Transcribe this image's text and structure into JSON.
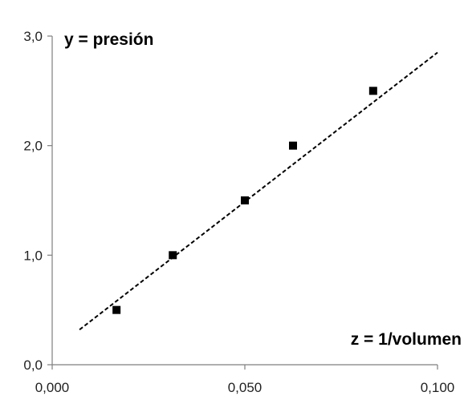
{
  "chart_data": {
    "type": "scatter",
    "ylabel": "y = presión",
    "xlabel": "z = 1/volumen",
    "xlim": [
      0,
      0.1
    ],
    "ylim": [
      0,
      3
    ],
    "x_ticks": [
      0,
      0.05,
      0.1
    ],
    "x_tick_labels": [
      "0,000",
      "0,050",
      "0,100"
    ],
    "y_ticks": [
      0,
      1,
      2,
      3
    ],
    "y_tick_labels": [
      "0,0",
      "1,0",
      "2,0",
      "3,0"
    ],
    "grid": false,
    "legend": "none",
    "series": [
      {
        "type": "scatter",
        "marker": "square",
        "color": "#000000",
        "points": [
          {
            "x": 0.0167,
            "y": 0.5
          },
          {
            "x": 0.0313,
            "y": 1.0
          },
          {
            "x": 0.05,
            "y": 1.5
          },
          {
            "x": 0.0625,
            "y": 2.0
          },
          {
            "x": 0.0833,
            "y": 2.5
          }
        ]
      },
      {
        "type": "line",
        "style": "dashed",
        "color": "#000000",
        "points": [
          {
            "x": 0.0071,
            "y": 0.32
          },
          {
            "x": 0.1,
            "y": 2.85
          }
        ]
      }
    ]
  }
}
